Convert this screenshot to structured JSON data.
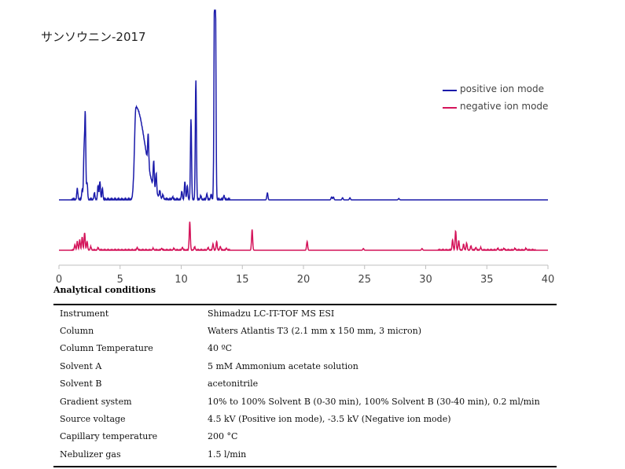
{
  "chart_data": {
    "type": "line",
    "title": "サンソウニン-2017",
    "x_ticks": [
      "0",
      "5",
      "10",
      "15",
      "20",
      "25",
      "30",
      "35",
      "40"
    ],
    "xlim": [
      0,
      40
    ],
    "series": [
      {
        "name": "positive ion mode",
        "color": "#1a1aaa",
        "peaks": [
          [
            1.5,
            0.08
          ],
          [
            1.9,
            0.07
          ],
          [
            2.05,
            0.32
          ],
          [
            2.15,
            0.6
          ],
          [
            2.3,
            0.12
          ],
          [
            2.9,
            0.05
          ],
          [
            3.2,
            0.1
          ],
          [
            3.35,
            0.13
          ],
          [
            3.55,
            0.08
          ],
          [
            6.3,
            0.66
          ],
          [
            7.3,
            0.22
          ],
          [
            7.75,
            0.19
          ],
          [
            7.95,
            0.14
          ],
          [
            8.25,
            0.05
          ],
          [
            8.5,
            0.03
          ],
          [
            9.3,
            0.02
          ],
          [
            10.05,
            0.06
          ],
          [
            10.3,
            0.13
          ],
          [
            10.5,
            0.1
          ],
          [
            10.8,
            0.57
          ],
          [
            11.2,
            0.85
          ],
          [
            11.6,
            0.03
          ],
          [
            12.1,
            0.04
          ],
          [
            12.45,
            0.04
          ],
          [
            12.72,
            1.35
          ],
          [
            12.8,
            1.3
          ],
          [
            13.5,
            0.03
          ],
          [
            17.05,
            0.05
          ],
          [
            22.3,
            0.02
          ],
          [
            22.45,
            0.02
          ],
          [
            23.2,
            0.015
          ],
          [
            23.8,
            0.015
          ],
          [
            27.8,
            0.01
          ]
        ]
      },
      {
        "name": "negative ion mode",
        "color": "#d4145a",
        "peaks": [
          [
            1.3,
            0.06
          ],
          [
            1.5,
            0.1
          ],
          [
            1.7,
            0.12
          ],
          [
            1.9,
            0.15
          ],
          [
            2.1,
            0.2
          ],
          [
            2.3,
            0.1
          ],
          [
            2.6,
            0.04
          ],
          [
            3.2,
            0.03
          ],
          [
            6.4,
            0.03
          ],
          [
            7.7,
            0.02
          ],
          [
            8.4,
            0.02
          ],
          [
            9.4,
            0.02
          ],
          [
            10.1,
            0.03
          ],
          [
            10.7,
            0.33
          ],
          [
            11.1,
            0.04
          ],
          [
            12.2,
            0.03
          ],
          [
            12.6,
            0.07
          ],
          [
            12.9,
            0.1
          ],
          [
            13.2,
            0.04
          ],
          [
            13.7,
            0.02
          ],
          [
            15.8,
            0.24
          ],
          [
            20.3,
            0.1
          ],
          [
            24.9,
            0.02
          ],
          [
            29.7,
            0.02
          ],
          [
            32.2,
            0.12
          ],
          [
            32.45,
            0.22
          ],
          [
            32.7,
            0.11
          ],
          [
            33.1,
            0.07
          ],
          [
            33.35,
            0.08
          ],
          [
            33.7,
            0.05
          ],
          [
            34.1,
            0.03
          ],
          [
            34.5,
            0.03
          ],
          [
            35.9,
            0.02
          ],
          [
            36.4,
            0.02
          ],
          [
            37.3,
            0.02
          ],
          [
            38.2,
            0.02
          ]
        ]
      }
    ]
  },
  "analytical_conditions": {
    "heading": "Analytical conditions",
    "rows": [
      {
        "label": "Instrument",
        "value": "Shimadzu LC-IT-TOF MS ESI"
      },
      {
        "label": "Column",
        "value": "Waters Atlantis T3 (2.1 mm x 150 mm, 3 micron)"
      },
      {
        "label": "Column Temperature",
        "value": "40 ºC"
      },
      {
        "label": "Solvent A",
        "value": "5 mM Ammonium acetate solution"
      },
      {
        "label": "Solvent B",
        "value": "acetonitrile"
      },
      {
        "label": "Gradient system",
        "value": "10% to 100% Solvent B (0-30 min), 100% Solvent B (30-40 min), 0.2 ml/min"
      },
      {
        "label": "Source voltage",
        "value": "4.5 kV (Positive ion mode), -3.5 kV (Negative ion mode)"
      },
      {
        "label": "Capillary temperature",
        "value": "200 °C"
      },
      {
        "label": "Nebulizer gas",
        "value": "1.5 l/min"
      }
    ]
  }
}
